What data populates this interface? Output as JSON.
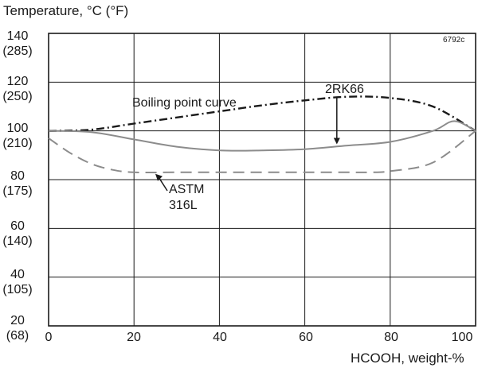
{
  "chart_data": {
    "type": "line",
    "ylabel": "Temperature, °C (°F)",
    "xlabel": "HCOOH, weight-%",
    "figure_code": "6792c",
    "xlim": [
      0,
      100
    ],
    "ylim": [
      20,
      140
    ],
    "x_ticks": [
      "0",
      "20",
      "40",
      "60",
      "80",
      "100"
    ],
    "y_ticks": [
      {
        "c": "140",
        "f": "(285)"
      },
      {
        "c": "120",
        "f": "(250)"
      },
      {
        "c": "100",
        "f": "(210)"
      },
      {
        "c": "80",
        "f": "(175)"
      },
      {
        "c": "60",
        "f": "(140)"
      },
      {
        "c": "40",
        "f": "(105)"
      },
      {
        "c": "20",
        "f": "(68)"
      }
    ],
    "grid": true,
    "series": [
      {
        "name": "Boiling point curve",
        "style": "dash-dot",
        "color": "#1a1a1a",
        "x": [
          0,
          10,
          20,
          30,
          40,
          50,
          60,
          70,
          80,
          90,
          100
        ],
        "y": [
          100,
          100.5,
          103,
          105.5,
          108,
          110.5,
          112.5,
          114,
          113.5,
          110,
          100
        ]
      },
      {
        "name": "2RK66",
        "style": "solid",
        "color": "#8c8c8c",
        "x": [
          0,
          10,
          20,
          30,
          40,
          50,
          60,
          70,
          80,
          90,
          95,
          100
        ],
        "y": [
          100,
          99.5,
          96.5,
          93.5,
          92,
          92,
          92.5,
          94,
          95.5,
          100,
          104,
          100
        ]
      },
      {
        "name": "ASTM 316L",
        "style": "dashed",
        "color": "#8c8c8c",
        "x": [
          0,
          5,
          10,
          15,
          20,
          30,
          40,
          50,
          60,
          70,
          75,
          80,
          90,
          100
        ],
        "y": [
          97,
          91,
          86.5,
          84,
          83,
          83,
          83,
          83,
          83,
          83,
          83,
          83.5,
          87,
          100
        ]
      }
    ],
    "annotations": {
      "boiling": "Boiling point curve",
      "rk66": "2RK66",
      "astm_line1": "ASTM",
      "astm_line2": "316L"
    }
  }
}
